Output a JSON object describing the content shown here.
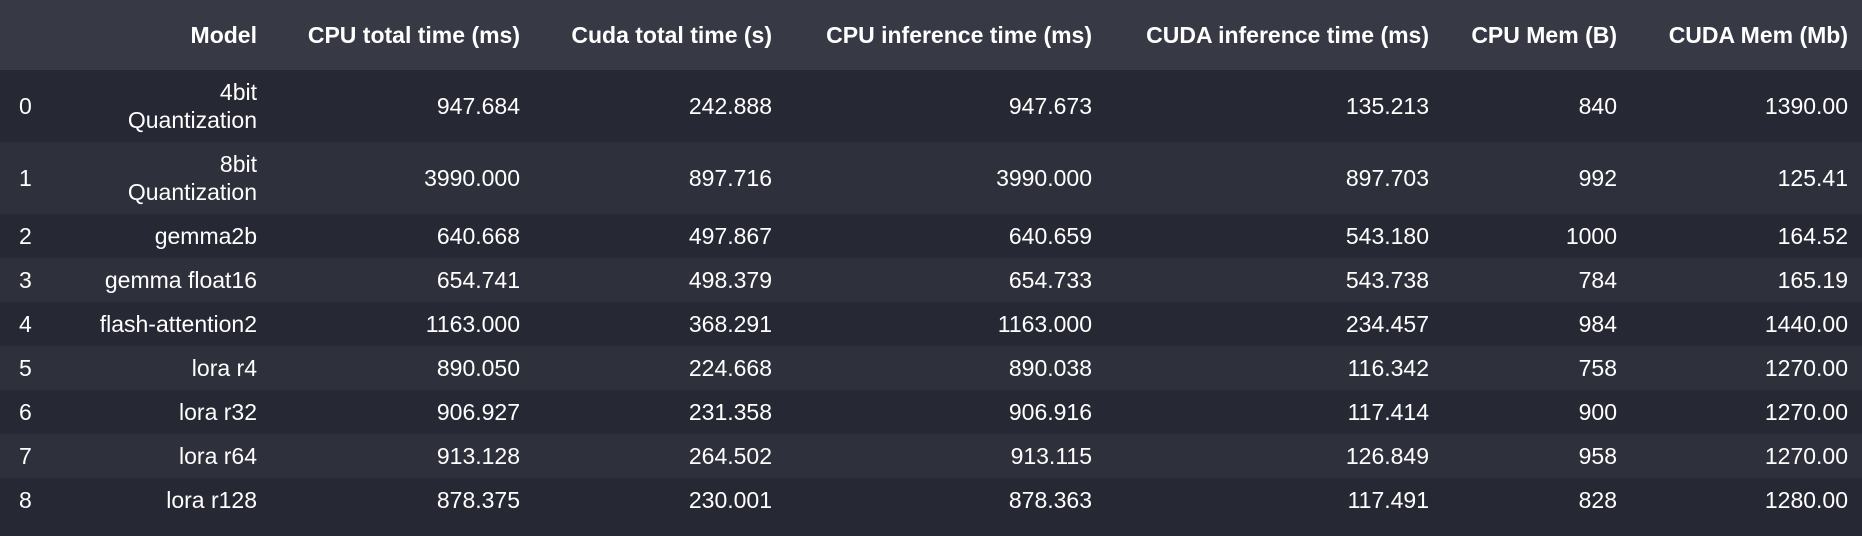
{
  "table": {
    "headers": {
      "index": "",
      "model": "Model",
      "cpu_total_time": [
        "CPU total time",
        "(ms)"
      ],
      "cuda_total_time": [
        "Cuda total time",
        "(s)"
      ],
      "cpu_inference_time": [
        "CPU inference time",
        "(ms)"
      ],
      "cuda_inference_time": [
        "CUDA inference time",
        "(ms)"
      ],
      "cpu_mem": [
        "CPU Mem",
        "(B)"
      ],
      "cuda_mem": [
        "CUDA Mem",
        "(Mb)"
      ]
    },
    "rows": [
      {
        "index": "0",
        "model": [
          "4bit",
          "Quantization"
        ],
        "cpu_total_time": "947.684",
        "cuda_total_time": "242.888",
        "cpu_inference_time": "947.673",
        "cuda_inference_time": "135.213",
        "cpu_mem": "840",
        "cuda_mem": "1390.00"
      },
      {
        "index": "1",
        "model": [
          "8bit",
          "Quantization"
        ],
        "cpu_total_time": "3990.000",
        "cuda_total_time": "897.716",
        "cpu_inference_time": "3990.000",
        "cuda_inference_time": "897.703",
        "cpu_mem": "992",
        "cuda_mem": "125.41"
      },
      {
        "index": "2",
        "model": [
          "gemma2b"
        ],
        "cpu_total_time": "640.668",
        "cuda_total_time": "497.867",
        "cpu_inference_time": "640.659",
        "cuda_inference_time": "543.180",
        "cpu_mem": "1000",
        "cuda_mem": "164.52"
      },
      {
        "index": "3",
        "model": [
          "gemma float16"
        ],
        "cpu_total_time": "654.741",
        "cuda_total_time": "498.379",
        "cpu_inference_time": "654.733",
        "cuda_inference_time": "543.738",
        "cpu_mem": "784",
        "cuda_mem": "165.19"
      },
      {
        "index": "4",
        "model": [
          "flash-attention2"
        ],
        "cpu_total_time": "1163.000",
        "cuda_total_time": "368.291",
        "cpu_inference_time": "1163.000",
        "cuda_inference_time": "234.457",
        "cpu_mem": "984",
        "cuda_mem": "1440.00"
      },
      {
        "index": "5",
        "model": [
          "lora r4"
        ],
        "cpu_total_time": "890.050",
        "cuda_total_time": "224.668",
        "cpu_inference_time": "890.038",
        "cuda_inference_time": "116.342",
        "cpu_mem": "758",
        "cuda_mem": "1270.00"
      },
      {
        "index": "6",
        "model": [
          "lora r32"
        ],
        "cpu_total_time": "906.927",
        "cuda_total_time": "231.358",
        "cpu_inference_time": "906.916",
        "cuda_inference_time": "117.414",
        "cpu_mem": "900",
        "cuda_mem": "1270.00"
      },
      {
        "index": "7",
        "model": [
          "lora r64"
        ],
        "cpu_total_time": "913.128",
        "cuda_total_time": "264.502",
        "cpu_inference_time": "913.115",
        "cuda_inference_time": "126.849",
        "cpu_mem": "958",
        "cuda_mem": "1270.00"
      },
      {
        "index": "8",
        "model": [
          "lora r128"
        ],
        "cpu_total_time": "878.375",
        "cuda_total_time": "230.001",
        "cpu_inference_time": "878.363",
        "cuda_inference_time": "117.491",
        "cpu_mem": "828",
        "cuda_mem": "1280.00"
      }
    ]
  }
}
